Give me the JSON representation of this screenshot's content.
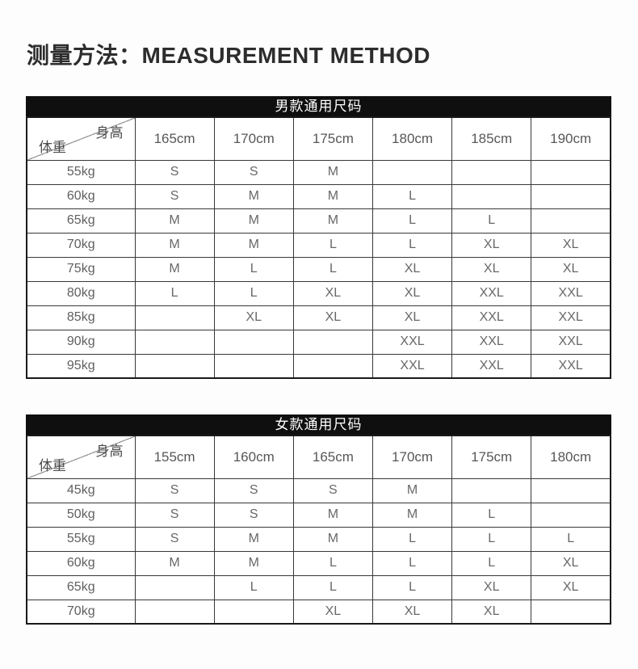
{
  "header": {
    "title": "测量方法：MEASUREMENT METHOD"
  },
  "colors": {
    "page_background": "#fdfdfd",
    "caption_bar_background": "#0f0f0f",
    "caption_bar_text": "#ffffff",
    "table_border": "#383838",
    "cell_text": "#686868",
    "title_text": "#2d2d2d"
  },
  "tables": [
    {
      "caption": "男款通用尺码",
      "corner": {
        "top_right": "身高",
        "bottom_left": "体重"
      },
      "columns": [
        "165cm",
        "170cm",
        "175cm",
        "180cm",
        "185cm",
        "190cm"
      ],
      "rows": [
        {
          "weight": "55kg",
          "sizes": [
            "S",
            "S",
            "M",
            "",
            "",
            ""
          ]
        },
        {
          "weight": "60kg",
          "sizes": [
            "S",
            "M",
            "M",
            "L",
            "",
            ""
          ]
        },
        {
          "weight": "65kg",
          "sizes": [
            "M",
            "M",
            "M",
            "L",
            "L",
            ""
          ]
        },
        {
          "weight": "70kg",
          "sizes": [
            "M",
            "M",
            "L",
            "L",
            "XL",
            "XL"
          ]
        },
        {
          "weight": "75kg",
          "sizes": [
            "M",
            "L",
            "L",
            "XL",
            "XL",
            "XL"
          ]
        },
        {
          "weight": "80kg",
          "sizes": [
            "L",
            "L",
            "XL",
            "XL",
            "XXL",
            "XXL"
          ]
        },
        {
          "weight": "85kg",
          "sizes": [
            "",
            "XL",
            "XL",
            "XL",
            "XXL",
            "XXL"
          ]
        },
        {
          "weight": "90kg",
          "sizes": [
            "",
            "",
            "",
            "XXL",
            "XXL",
            "XXL"
          ]
        },
        {
          "weight": "95kg",
          "sizes": [
            "",
            "",
            "",
            "XXL",
            "XXL",
            "XXL"
          ]
        }
      ]
    },
    {
      "caption": "女款通用尺码",
      "corner": {
        "top_right": "身高",
        "bottom_left": "体重"
      },
      "columns": [
        "155cm",
        "160cm",
        "165cm",
        "170cm",
        "175cm",
        "180cm"
      ],
      "rows": [
        {
          "weight": "45kg",
          "sizes": [
            "S",
            "S",
            "S",
            "M",
            "",
            ""
          ]
        },
        {
          "weight": "50kg",
          "sizes": [
            "S",
            "S",
            "M",
            "M",
            "L",
            ""
          ]
        },
        {
          "weight": "55kg",
          "sizes": [
            "S",
            "M",
            "M",
            "L",
            "L",
            "L"
          ]
        },
        {
          "weight": "60kg",
          "sizes": [
            "M",
            "M",
            "L",
            "L",
            "L",
            "XL"
          ]
        },
        {
          "weight": "65kg",
          "sizes": [
            "",
            "L",
            "L",
            "L",
            "XL",
            "XL"
          ]
        },
        {
          "weight": "70kg",
          "sizes": [
            "",
            "",
            "XL",
            "XL",
            "XL",
            ""
          ]
        }
      ]
    }
  ]
}
